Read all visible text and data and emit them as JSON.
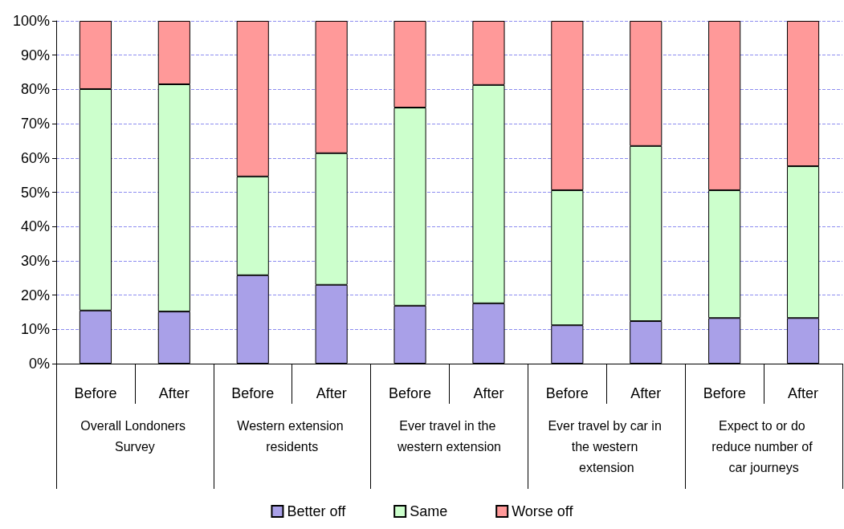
{
  "chart_data": {
    "type": "bar",
    "stacked": true,
    "categories": [
      "Before",
      "After",
      "Before",
      "After",
      "Before",
      "After",
      "Before",
      "After",
      "Before",
      "After"
    ],
    "annotations": [
      "Overall Londoners Survey",
      "Western extension residents",
      "Ever travel in the western extension",
      "Ever travel by car in the western extension",
      "Expect to or do reduce number of car journeys"
    ],
    "series": [
      {
        "name": "Better off",
        "color": "#a9a0e8",
        "values": [
          15.5,
          15.2,
          25.8,
          23.0,
          16.9,
          17.6,
          11.2,
          12.4,
          13.3,
          13.3
        ]
      },
      {
        "name": "Same",
        "color": "#ccffcc",
        "values": [
          64.6,
          66.3,
          28.8,
          38.4,
          57.8,
          63.7,
          39.4,
          51.1,
          37.3,
          44.3
        ]
      },
      {
        "name": "Worse off",
        "color": "#ff9999",
        "values": [
          19.9,
          18.5,
          45.4,
          38.6,
          25.3,
          18.7,
          49.4,
          36.5,
          49.4,
          42.4
        ]
      }
    ],
    "ylim": [
      0,
      100
    ],
    "yticks": [
      {
        "value": 0,
        "label": "0%"
      },
      {
        "value": 10,
        "label": "10%"
      },
      {
        "value": 20,
        "label": "20%"
      },
      {
        "value": 30,
        "label": "30%"
      },
      {
        "value": 40,
        "label": "40%"
      },
      {
        "value": 50,
        "label": "50%"
      },
      {
        "value": 60,
        "label": "60%"
      },
      {
        "value": 70,
        "label": "70%"
      },
      {
        "value": 80,
        "label": "80%"
      },
      {
        "value": 90,
        "label": "90%"
      },
      {
        "value": 100,
        "label": "100%"
      }
    ],
    "grid": "y",
    "legend": "bottom"
  }
}
